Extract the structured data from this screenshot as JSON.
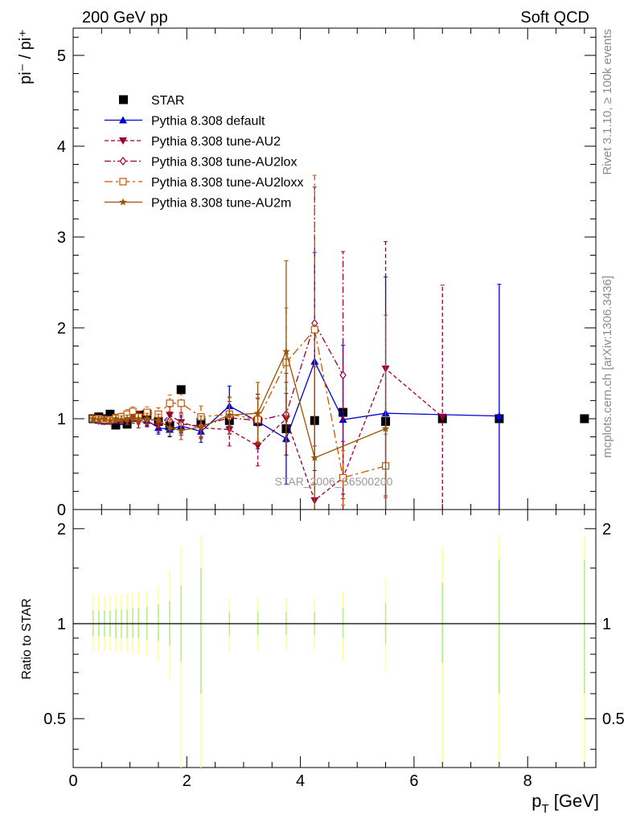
{
  "header": {
    "left": "200 GeV pp",
    "right": "Soft QCD"
  },
  "side_text": {
    "rivet": "Rivet 3.1.10, ≥ 100k events",
    "mcplots": "mcplots.cern.ch [arXiv:1306.3436]"
  },
  "watermark": "STAR_2006_S6500200",
  "chart_data": [
    {
      "type": "line",
      "panel": "main",
      "ylabel": "pi⁻ / pi⁺",
      "xlim": [
        0,
        9.2
      ],
      "ylim": [
        0,
        5.3
      ],
      "yticks": [
        "0",
        "1",
        "2",
        "3",
        "4",
        "5"
      ],
      "legend_position": "top-left",
      "colors": {
        "STAR": "#000000",
        "default": "#0000cc",
        "AU2": "#990033",
        "AU2lox": "#990033",
        "AU2loxx": "#cc5500",
        "AU2m": "#995500"
      },
      "series": [
        {
          "name": "STAR",
          "style": "data",
          "points": [
            [
              0.35,
              1.0
            ],
            [
              0.45,
              1.02
            ],
            [
              0.55,
              1.0
            ],
            [
              0.65,
              1.05
            ],
            [
              0.75,
              0.93
            ],
            [
              0.85,
              0.98
            ],
            [
              0.95,
              0.94
            ],
            [
              1.05,
              1.02
            ],
            [
              1.15,
              1.04
            ],
            [
              1.3,
              1.05
            ],
            [
              1.5,
              0.97
            ],
            [
              1.7,
              0.92
            ],
            [
              1.9,
              1.32
            ],
            [
              2.25,
              0.96
            ],
            [
              2.75,
              0.98
            ],
            [
              3.25,
              0.97
            ],
            [
              3.75,
              0.89
            ],
            [
              4.25,
              0.98
            ],
            [
              4.75,
              1.07
            ],
            [
              5.5,
              0.97
            ],
            [
              6.5,
              1.0
            ],
            [
              7.5,
              1.0
            ],
            [
              9.0,
              1.0
            ]
          ]
        },
        {
          "name": "Pythia 8.308 default",
          "style": "solid",
          "points": [
            [
              0.35,
              1.0,
              0.03
            ],
            [
              0.45,
              0.98,
              0.03
            ],
            [
              0.55,
              0.97,
              0.03
            ],
            [
              0.65,
              0.98,
              0.03
            ],
            [
              0.75,
              0.98,
              0.04
            ],
            [
              0.85,
              0.99,
              0.04
            ],
            [
              0.95,
              1.0,
              0.04
            ],
            [
              1.05,
              1.0,
              0.05
            ],
            [
              1.15,
              1.01,
              0.05
            ],
            [
              1.3,
              0.98,
              0.06
            ],
            [
              1.5,
              0.9,
              0.07
            ],
            [
              1.7,
              0.88,
              0.08
            ],
            [
              1.9,
              0.92,
              0.1
            ],
            [
              2.25,
              0.86,
              0.12
            ],
            [
              2.75,
              1.14,
              0.22
            ],
            [
              3.25,
              0.97,
              0.3
            ],
            [
              3.75,
              0.78,
              0.5
            ],
            [
              4.25,
              1.63,
              1.2
            ],
            [
              4.75,
              0.99,
              0.82
            ],
            [
              5.5,
              1.06,
              1.5
            ],
            [
              7.5,
              1.03,
              1.45
            ]
          ]
        },
        {
          "name": "Pythia 8.308 tune-AU2",
          "style": "dashed",
          "points": [
            [
              0.35,
              1.0,
              0.03
            ],
            [
              0.45,
              0.99,
              0.03
            ],
            [
              0.55,
              0.97,
              0.03
            ],
            [
              0.65,
              0.97,
              0.03
            ],
            [
              0.75,
              1.0,
              0.04
            ],
            [
              0.85,
              0.98,
              0.04
            ],
            [
              0.95,
              0.98,
              0.05
            ],
            [
              1.05,
              1.0,
              0.05
            ],
            [
              1.15,
              0.96,
              0.06
            ],
            [
              1.3,
              0.97,
              0.06
            ],
            [
              1.5,
              0.92,
              0.07
            ],
            [
              1.7,
              1.04,
              0.09
            ],
            [
              1.9,
              0.96,
              0.1
            ],
            [
              2.25,
              0.9,
              0.12
            ],
            [
              2.75,
              0.88,
              0.18
            ],
            [
              3.25,
              0.7,
              0.22
            ],
            [
              3.75,
              1.0,
              0.4
            ],
            [
              4.25,
              0.1,
              0.6
            ],
            [
              4.75,
              0.35,
              0.4
            ],
            [
              5.5,
              1.55,
              1.4
            ],
            [
              6.5,
              1.02,
              1.45
            ]
          ]
        },
        {
          "name": "Pythia 8.308 tune-AU2lox",
          "style": "dashdot",
          "points": [
            [
              0.35,
              1.0,
              0.03
            ],
            [
              0.45,
              0.98,
              0.03
            ],
            [
              0.55,
              0.99,
              0.03
            ],
            [
              0.65,
              0.98,
              0.03
            ],
            [
              0.75,
              0.99,
              0.04
            ],
            [
              0.85,
              1.0,
              0.04
            ],
            [
              0.95,
              1.02,
              0.05
            ],
            [
              1.05,
              1.0,
              0.05
            ],
            [
              1.15,
              1.02,
              0.06
            ],
            [
              1.3,
              0.99,
              0.06
            ],
            [
              1.5,
              0.98,
              0.07
            ],
            [
              1.7,
              0.98,
              0.09
            ],
            [
              1.9,
              0.94,
              0.1
            ],
            [
              2.25,
              0.92,
              0.12
            ],
            [
              2.75,
              1.01,
              0.18
            ],
            [
              3.25,
              0.98,
              0.24
            ],
            [
              3.75,
              1.05,
              0.45
            ],
            [
              4.25,
              2.05,
              1.5
            ],
            [
              4.75,
              1.48,
              1.36
            ]
          ]
        },
        {
          "name": "Pythia 8.308 tune-AU2loxx",
          "style": "longdash",
          "points": [
            [
              0.35,
              1.0,
              0.03
            ],
            [
              0.45,
              1.0,
              0.03
            ],
            [
              0.55,
              0.99,
              0.03
            ],
            [
              0.65,
              0.99,
              0.03
            ],
            [
              0.75,
              1.01,
              0.04
            ],
            [
              0.85,
              1.02,
              0.04
            ],
            [
              0.95,
              1.05,
              0.05
            ],
            [
              1.05,
              1.08,
              0.05
            ],
            [
              1.15,
              1.02,
              0.06
            ],
            [
              1.3,
              1.07,
              0.06
            ],
            [
              1.5,
              1.05,
              0.07
            ],
            [
              1.7,
              1.17,
              0.09
            ],
            [
              1.9,
              1.17,
              0.1
            ],
            [
              2.25,
              1.02,
              0.12
            ],
            [
              2.75,
              1.05,
              0.18
            ],
            [
              3.25,
              0.99,
              0.24
            ],
            [
              3.75,
              1.62,
              0.6
            ],
            [
              4.25,
              1.98,
              1.7
            ],
            [
              4.75,
              0.35,
              0.3
            ],
            [
              5.5,
              0.48,
              0.35
            ]
          ]
        },
        {
          "name": "Pythia 8.308 tune-AU2m",
          "style": "solid",
          "points": [
            [
              0.35,
              1.0,
              0.03
            ],
            [
              0.45,
              0.99,
              0.03
            ],
            [
              0.55,
              1.0,
              0.03
            ],
            [
              0.65,
              0.98,
              0.03
            ],
            [
              0.75,
              1.0,
              0.04
            ],
            [
              0.85,
              0.99,
              0.04
            ],
            [
              0.95,
              0.99,
              0.05
            ],
            [
              1.05,
              1.0,
              0.05
            ],
            [
              1.15,
              1.0,
              0.06
            ],
            [
              1.3,
              1.0,
              0.06
            ],
            [
              1.5,
              0.98,
              0.07
            ],
            [
              1.7,
              0.9,
              0.09
            ],
            [
              1.9,
              0.87,
              0.1
            ],
            [
              2.25,
              0.91,
              0.12
            ],
            [
              2.75,
              1.04,
              0.2
            ],
            [
              3.25,
              1.06,
              0.34
            ],
            [
              3.75,
              1.74,
              1.0
            ],
            [
              4.25,
              0.57,
              1.0
            ],
            [
              5.5,
              0.89,
              1.25
            ]
          ]
        }
      ]
    },
    {
      "type": "line",
      "panel": "ratio",
      "xlabel": "p_T [GeV]",
      "xlabel_main": "p",
      "xlabel_sub": "T",
      "xlabel_unit": " [GeV]",
      "ylabel": "Ratio to STAR",
      "xlim": [
        0,
        9.2
      ],
      "ylim": [
        0.35,
        2.3
      ],
      "log_y": true,
      "xticks": [
        "0",
        "2",
        "4",
        "6",
        "8"
      ],
      "yticks": [
        "0.5",
        "1",
        "2"
      ],
      "reference_line": 1,
      "bands": [
        {
          "x": 0.35,
          "inner": [
            0.91,
            1.1
          ],
          "outer": [
            0.82,
            1.23
          ]
        },
        {
          "x": 0.45,
          "inner": [
            0.91,
            1.1
          ],
          "outer": [
            0.82,
            1.23
          ]
        },
        {
          "x": 0.55,
          "inner": [
            0.91,
            1.1
          ],
          "outer": [
            0.82,
            1.23
          ]
        },
        {
          "x": 0.65,
          "inner": [
            0.91,
            1.1
          ],
          "outer": [
            0.82,
            1.23
          ]
        },
        {
          "x": 0.75,
          "inner": [
            0.9,
            1.11
          ],
          "outer": [
            0.82,
            1.24
          ]
        },
        {
          "x": 0.85,
          "inner": [
            0.9,
            1.11
          ],
          "outer": [
            0.81,
            1.24
          ]
        },
        {
          "x": 0.95,
          "inner": [
            0.9,
            1.11
          ],
          "outer": [
            0.81,
            1.25
          ]
        },
        {
          "x": 1.05,
          "inner": [
            0.9,
            1.12
          ],
          "outer": [
            0.8,
            1.25
          ]
        },
        {
          "x": 1.15,
          "inner": [
            0.9,
            1.12
          ],
          "outer": [
            0.8,
            1.26
          ]
        },
        {
          "x": 1.3,
          "inner": [
            0.89,
            1.13
          ],
          "outer": [
            0.79,
            1.27
          ]
        },
        {
          "x": 1.5,
          "inner": [
            0.88,
            1.15
          ],
          "outer": [
            0.76,
            1.32
          ]
        },
        {
          "x": 1.7,
          "inner": [
            0.85,
            1.18
          ],
          "outer": [
            0.66,
            1.48
          ]
        },
        {
          "x": 1.9,
          "inner": [
            0.76,
            1.32
          ],
          "outer": [
            0.35,
            1.75
          ]
        },
        {
          "x": 2.25,
          "inner": [
            0.6,
            1.5
          ],
          "outer": [
            0.35,
            1.9
          ]
        },
        {
          "x": 2.75,
          "inner": [
            0.92,
            1.09
          ],
          "outer": [
            0.82,
            1.21
          ]
        },
        {
          "x": 3.25,
          "inner": [
            0.92,
            1.09
          ],
          "outer": [
            0.82,
            1.21
          ]
        },
        {
          "x": 3.75,
          "inner": [
            0.92,
            1.09
          ],
          "outer": [
            0.82,
            1.21
          ]
        },
        {
          "x": 4.25,
          "inner": [
            0.92,
            1.09
          ],
          "outer": [
            0.82,
            1.21
          ]
        },
        {
          "x": 4.75,
          "inner": [
            0.9,
            1.12
          ],
          "outer": [
            0.76,
            1.27
          ]
        },
        {
          "x": 5.5,
          "inner": [
            0.86,
            1.16
          ],
          "outer": [
            0.7,
            1.4
          ]
        },
        {
          "x": 6.5,
          "inner": [
            0.75,
            1.35
          ],
          "outer": [
            0.35,
            1.75
          ]
        },
        {
          "x": 7.5,
          "inner": [
            0.6,
            1.6
          ],
          "outer": [
            0.35,
            1.9
          ]
        },
        {
          "x": 9.0,
          "inner": [
            0.6,
            1.6
          ],
          "outer": [
            0.35,
            1.9
          ]
        }
      ]
    }
  ]
}
